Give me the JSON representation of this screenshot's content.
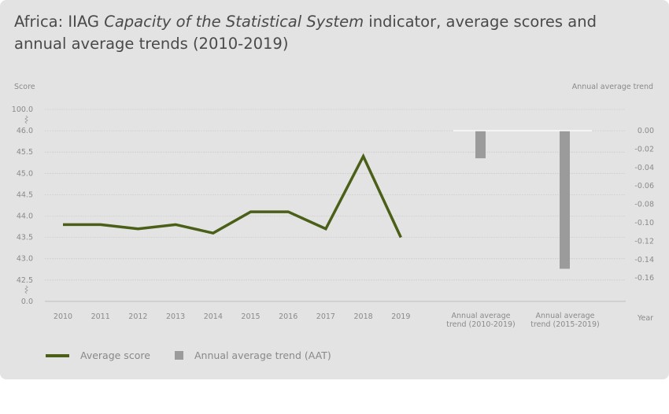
{
  "title": {
    "prefix": "Africa: IIAG ",
    "italic": "Capacity of the Statistical System",
    "suffix": " indicator, average scores and annual average trends (2010-2019)"
  },
  "chart_data": [
    {
      "type": "line",
      "ylabel": "Score",
      "categories": [
        "2010",
        "2011",
        "2012",
        "2013",
        "2014",
        "2015",
        "2016",
        "2017",
        "2018",
        "2019"
      ],
      "series": [
        {
          "name": "Average score",
          "values": [
            43.8,
            43.8,
            43.7,
            43.8,
            43.6,
            44.1,
            44.1,
            43.7,
            45.4,
            43.5
          ],
          "color": "#4a5f17"
        }
      ],
      "yticks": [
        "100.0",
        "46.0",
        "45.5",
        "45.0",
        "44.5",
        "44.0",
        "43.5",
        "43.0",
        "42.5",
        "0.0"
      ],
      "ylim": [
        42.5,
        46.0
      ],
      "axis_breaks": true,
      "grid": true
    },
    {
      "type": "bar",
      "ylabel": "Annual average trend",
      "xlabel": "Year",
      "categories": [
        "Annual average trend (2010-2019)",
        "Annual average trend (2015-2019)"
      ],
      "category_lines": [
        [
          "Annual average",
          "trend (2010-2019)"
        ],
        [
          "Annual average",
          "trend (2015-2019)"
        ]
      ],
      "series": [
        {
          "name": "Annual average trend (AAT)",
          "values": [
            -0.03,
            -0.15
          ],
          "color": "#9b9b9b"
        }
      ],
      "yticks": [
        "0.00",
        "-0.02",
        "-0.04",
        "-0.06",
        "-0.08",
        "-0.10",
        "-0.12",
        "-0.14",
        "-0.16"
      ],
      "ylim": [
        -0.16,
        0.0
      ]
    }
  ],
  "legend": [
    {
      "label": "Average score",
      "color": "#4a5f17"
    },
    {
      "label": "Annual average trend (AAT)",
      "color": "#9b9b9b"
    }
  ]
}
